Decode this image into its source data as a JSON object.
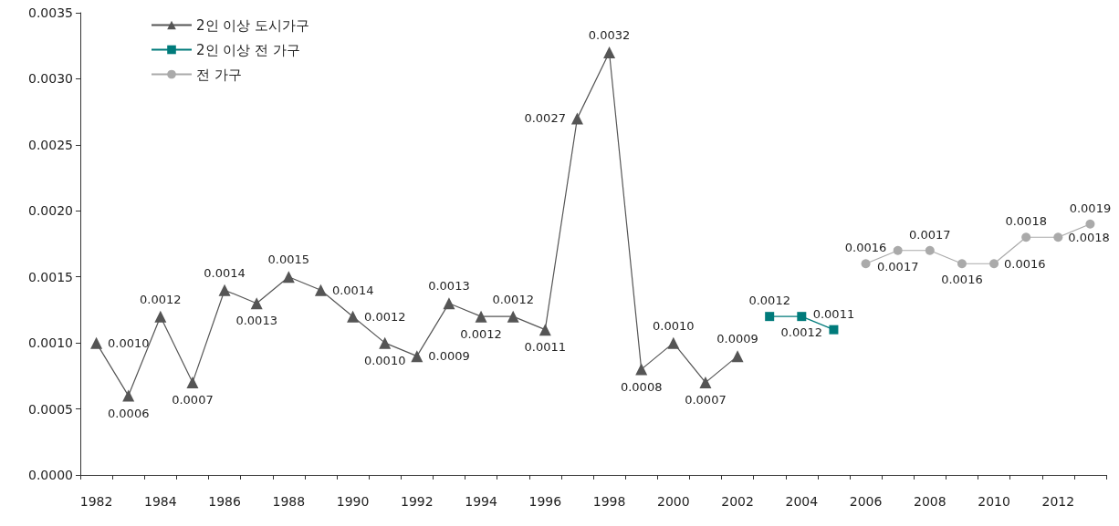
{
  "chart_data": {
    "type": "line",
    "categories": [
      "1982",
      null,
      "1984",
      null,
      "1986",
      null,
      "1988",
      null,
      "1990",
      null,
      "1992",
      null,
      "1994",
      null,
      "1996",
      null,
      "1998",
      null,
      "2000",
      null,
      "2002",
      null,
      "2004",
      null,
      "2006",
      null,
      "2008",
      null,
      "2010",
      null,
      "2012",
      null
    ],
    "series": [
      {
        "name": "2인 이상 도시가구",
        "color": "#555555",
        "marker": "triangle",
        "values": [
          0.001,
          0.0006,
          0.0012,
          0.0007,
          0.0014,
          0.0013,
          0.0015,
          0.0014,
          0.0012,
          0.001,
          0.0009,
          0.0013,
          0.0012,
          0.0012,
          0.0011,
          0.0027,
          0.0032,
          0.0008,
          0.001,
          0.0007,
          0.0009,
          null,
          null,
          null,
          null,
          null,
          null,
          null,
          null,
          null,
          null,
          null
        ],
        "value_labels": [
          "0.0010",
          "0.0006",
          "0.0012",
          "0.0007",
          "0.0014",
          "0.0013",
          "0.0015",
          "0.0014",
          "0.0012",
          "0.0010",
          "0.0009",
          "0.0013",
          "0.0012",
          "0.0012",
          "0.0011",
          "0.0027",
          "0.0032",
          "0.0008",
          "0.0010",
          "0.0007",
          "0.0009",
          null,
          null,
          null,
          null,
          null,
          null,
          null,
          null,
          null,
          null,
          null
        ]
      },
      {
        "name": "2인 이상 전 가구",
        "color": "#007b7b",
        "marker": "square",
        "values": [
          null,
          null,
          null,
          null,
          null,
          null,
          null,
          null,
          null,
          null,
          null,
          null,
          null,
          null,
          null,
          null,
          null,
          null,
          null,
          null,
          null,
          0.0012,
          0.0012,
          0.0011,
          null,
          null,
          null,
          null,
          null,
          null,
          null,
          null
        ],
        "value_labels": [
          null,
          null,
          null,
          null,
          null,
          null,
          null,
          null,
          null,
          null,
          null,
          null,
          null,
          null,
          null,
          null,
          null,
          null,
          null,
          null,
          null,
          "0.0012",
          "0.0012",
          "0.0011",
          null,
          null,
          null,
          null,
          null,
          null,
          null,
          null
        ]
      },
      {
        "name": "전 가구",
        "color": "#aaaaaa",
        "marker": "circle",
        "values": [
          null,
          null,
          null,
          null,
          null,
          null,
          null,
          null,
          null,
          null,
          null,
          null,
          null,
          null,
          null,
          null,
          null,
          null,
          null,
          null,
          null,
          null,
          null,
          null,
          0.0016,
          0.0017,
          0.0017,
          0.0016,
          0.0016,
          0.0018,
          0.0018,
          0.0019
        ],
        "value_labels": [
          null,
          null,
          null,
          null,
          null,
          null,
          null,
          null,
          null,
          null,
          null,
          null,
          null,
          null,
          null,
          null,
          null,
          null,
          null,
          null,
          null,
          null,
          null,
          null,
          "0.0016",
          "0.0017",
          "0.0017",
          "0.0016",
          "0.0016",
          "0.0018",
          "0.0018",
          "0.0019"
        ]
      }
    ],
    "ylim": [
      0,
      0.0035
    ],
    "yticks": [
      {
        "value": 0,
        "label": "0.0000"
      },
      {
        "value": 0.0005,
        "label": "0.0005"
      },
      {
        "value": 0.001,
        "label": "0.0010"
      },
      {
        "value": 0.0015,
        "label": "0.0015"
      },
      {
        "value": 0.002,
        "label": "0.0020"
      },
      {
        "value": 0.0025,
        "label": "0.0025"
      },
      {
        "value": 0.003,
        "label": "0.0030"
      },
      {
        "value": 0.0035,
        "label": "0.0035"
      }
    ],
    "grid": false,
    "legend": "top left"
  }
}
